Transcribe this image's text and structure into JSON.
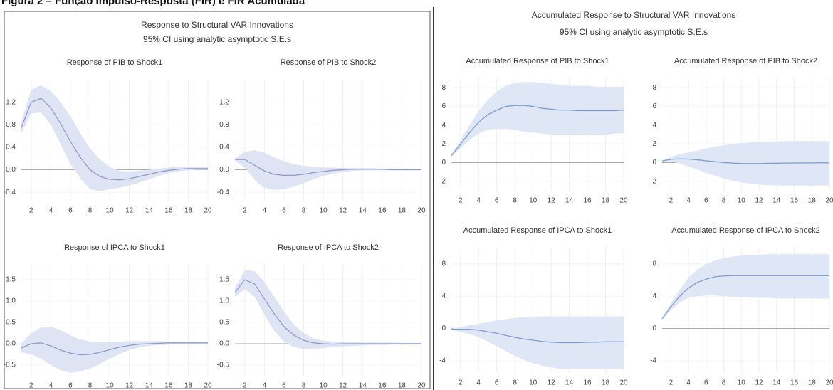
{
  "figure_title": "Figura 2 – Função Impulso-Resposta (FIR) e FIR Acumulada",
  "panels": [
    {
      "title": "Response to Structural VAR Innovations",
      "subtitle": "95% CI using analytic asymptotic S.E.s"
    },
    {
      "title": "Accumulated Response to Structural VAR Innovations",
      "subtitle": "95% CI using analytic asymptotic S.E.s"
    }
  ],
  "chart_data": [
    {
      "type": "line",
      "title": "Response of PIB to Shock1",
      "color": "#8e9cc8",
      "band_color": "#dfe4f5",
      "x": [
        1,
        2,
        3,
        4,
        5,
        6,
        7,
        8,
        9,
        10,
        11,
        12,
        13,
        14,
        15,
        16,
        17,
        18,
        19,
        20
      ],
      "xlim": [
        1,
        20
      ],
      "xticks": [
        2,
        4,
        6,
        8,
        10,
        12,
        14,
        16,
        18,
        20
      ],
      "ylim": [
        -0.55,
        1.6
      ],
      "yticks": [
        -0.4,
        {
          "value": 0,
          "label": "0.0"
        },
        0.4,
        0.8,
        1.2
      ],
      "grid": true,
      "values": [
        0.75,
        1.2,
        1.27,
        1.1,
        0.82,
        0.5,
        0.22,
        0.0,
        -0.12,
        -0.17,
        -0.18,
        -0.16,
        -0.12,
        -0.08,
        -0.04,
        -0.01,
        0.01,
        0.02,
        0.02,
        0.02
      ],
      "ci_upper": [
        0.85,
        1.42,
        1.5,
        1.4,
        1.2,
        0.95,
        0.65,
        0.38,
        0.18,
        0.05,
        -0.02,
        -0.03,
        -0.02,
        0,
        0.02,
        0.04,
        0.05,
        0.05,
        0.05,
        0.05
      ],
      "ci_lower": [
        0.65,
        1.0,
        1.02,
        0.8,
        0.45,
        0.1,
        -0.15,
        -0.35,
        -0.38,
        -0.35,
        -0.32,
        -0.28,
        -0.23,
        -0.17,
        -0.11,
        -0.06,
        -0.03,
        -0.01,
        0,
        0
      ]
    },
    {
      "type": "line",
      "title": "Response of PIB to Shock2",
      "color": "#8e9cc8",
      "band_color": "#dfe4f5",
      "x": [
        1,
        2,
        3,
        4,
        5,
        6,
        7,
        8,
        9,
        10,
        11,
        12,
        13,
        14,
        15,
        16,
        17,
        18,
        19,
        20
      ],
      "xlim": [
        1,
        20
      ],
      "xticks": [
        2,
        4,
        6,
        8,
        10,
        12,
        14,
        16,
        18,
        20
      ],
      "ylim": [
        -0.55,
        1.6
      ],
      "yticks": [
        -0.4,
        {
          "value": 0,
          "label": "0.0"
        },
        0.4,
        0.8,
        1.2
      ],
      "grid": true,
      "values": [
        0.18,
        0.18,
        0.08,
        -0.02,
        -0.08,
        -0.1,
        -0.1,
        -0.08,
        -0.05,
        -0.03,
        -0.01,
        0,
        0.01,
        0.01,
        0.01,
        0.01,
        0,
        0,
        0,
        0
      ],
      "ci_upper": [
        0.2,
        0.32,
        0.35,
        0.3,
        0.22,
        0.15,
        0.1,
        0.07,
        0.05,
        0.04,
        0.04,
        0.03,
        0.03,
        0.03,
        0.03,
        0.02,
        0.02,
        0.02,
        0.01,
        0.01
      ],
      "ci_lower": [
        0.16,
        0.04,
        -0.18,
        -0.32,
        -0.36,
        -0.35,
        -0.3,
        -0.24,
        -0.17,
        -0.11,
        -0.07,
        -0.04,
        -0.02,
        -0.01,
        -0.01,
        -0.01,
        -0.01,
        -0.01,
        -0.01,
        -0.01
      ]
    },
    {
      "type": "line",
      "title": "Response of IPCA to Shock1",
      "color": "#8e9cc8",
      "band_color": "#dfe4f5",
      "x": [
        1,
        2,
        3,
        4,
        5,
        6,
        7,
        8,
        9,
        10,
        11,
        12,
        13,
        14,
        15,
        16,
        17,
        18,
        19,
        20
      ],
      "xlim": [
        1,
        20
      ],
      "xticks": [
        2,
        4,
        6,
        8,
        10,
        12,
        14,
        16,
        18,
        20
      ],
      "ylim": [
        -0.75,
        1.85
      ],
      "yticks": [
        -0.5,
        {
          "value": 0,
          "label": "0.0"
        },
        0.5,
        {
          "value": 1,
          "label": "1.0"
        },
        1.5
      ],
      "grid": true,
      "values": [
        -0.1,
        0,
        0.02,
        -0.05,
        -0.15,
        -0.22,
        -0.26,
        -0.25,
        -0.2,
        -0.14,
        -0.08,
        -0.04,
        -0.01,
        0,
        0.01,
        0.02,
        0.02,
        0.02,
        0.02,
        0.02
      ],
      "ci_upper": [
        0,
        0.25,
        0.38,
        0.4,
        0.32,
        0.2,
        0.1,
        0.05,
        0.03,
        0.04,
        0.05,
        0.06,
        0.06,
        0.06,
        0.06,
        0.05,
        0.05,
        0.05,
        0.05,
        0.05
      ],
      "ci_lower": [
        -0.2,
        -0.25,
        -0.35,
        -0.5,
        -0.62,
        -0.68,
        -0.65,
        -0.58,
        -0.47,
        -0.35,
        -0.24,
        -0.15,
        -0.09,
        -0.05,
        -0.03,
        -0.02,
        -0.01,
        -0.01,
        -0.01,
        -0.01
      ]
    },
    {
      "type": "line",
      "title": "Response of IPCA to Shock2",
      "color": "#8e9cc8",
      "band_color": "#dfe4f5",
      "x": [
        1,
        2,
        3,
        4,
        5,
        6,
        7,
        8,
        9,
        10,
        11,
        12,
        13,
        14,
        15,
        16,
        17,
        18,
        19,
        20
      ],
      "xlim": [
        1,
        20
      ],
      "xticks": [
        2,
        4,
        6,
        8,
        10,
        12,
        14,
        16,
        18,
        20
      ],
      "ylim": [
        -0.75,
        1.85
      ],
      "yticks": [
        -0.5,
        {
          "value": 0,
          "label": "0.0"
        },
        0.5,
        {
          "value": 1,
          "label": "1.0"
        },
        1.5
      ],
      "grid": true,
      "values": [
        1.2,
        1.5,
        1.4,
        1.05,
        0.7,
        0.4,
        0.2,
        0.08,
        0.02,
        0,
        -0.01,
        0,
        0,
        0,
        0,
        0,
        0,
        0,
        0,
        0
      ],
      "ci_upper": [
        1.3,
        1.72,
        1.7,
        1.45,
        1.1,
        0.75,
        0.45,
        0.25,
        0.12,
        0.07,
        0.05,
        0.04,
        0.04,
        0.03,
        0.03,
        0.03,
        0.03,
        0.02,
        0.02,
        0.02
      ],
      "ci_lower": [
        1.1,
        1.28,
        1.1,
        0.68,
        0.3,
        0.05,
        -0.08,
        -0.12,
        -0.12,
        -0.1,
        -0.08,
        -0.06,
        -0.05,
        -0.04,
        -0.03,
        -0.03,
        -0.02,
        -0.02,
        -0.02,
        -0.02
      ]
    },
    {
      "type": "line",
      "title": "Accumulated Response of PIB to Shock1",
      "color": "#7f9ccf",
      "band_color": "#dfe6f5",
      "x": [
        1,
        2,
        3,
        4,
        5,
        6,
        7,
        8,
        9,
        10,
        11,
        12,
        13,
        14,
        15,
        16,
        17,
        18,
        19,
        20
      ],
      "xlim": [
        1,
        20
      ],
      "xticks": [
        2,
        4,
        6,
        8,
        10,
        12,
        14,
        16,
        18,
        20
      ],
      "ylim": [
        -3,
        9
      ],
      "yticks": [
        -2,
        0,
        2,
        4,
        6,
        8
      ],
      "grid": true,
      "values": [
        0.75,
        1.95,
        3.2,
        4.3,
        5.1,
        5.6,
        6.0,
        6.1,
        6.1,
        6.0,
        5.8,
        5.7,
        5.6,
        5.6,
        5.55,
        5.55,
        5.55,
        5.55,
        5.55,
        5.6
      ],
      "ci_upper": [
        0.85,
        2.4,
        4.0,
        5.5,
        6.7,
        7.6,
        8.2,
        8.5,
        8.6,
        8.6,
        8.5,
        8.4,
        8.3,
        8.2,
        8.2,
        8.2,
        8.1,
        8.1,
        8.1,
        8.1
      ],
      "ci_lower": [
        0.65,
        1.5,
        2.4,
        3.1,
        3.5,
        3.6,
        3.6,
        3.5,
        3.3,
        3.2,
        3.1,
        3.0,
        3.0,
        3.0,
        3.0,
        3.0,
        3.0,
        3.0,
        3.1,
        3.1
      ]
    },
    {
      "type": "line",
      "title": "Accumulated Response of PIB to Shock2",
      "color": "#7f9ccf",
      "band_color": "#dfe6f5",
      "x": [
        1,
        2,
        3,
        4,
        5,
        6,
        7,
        8,
        9,
        10,
        11,
        12,
        13,
        14,
        15,
        16,
        17,
        18,
        19,
        20
      ],
      "xlim": [
        1,
        20
      ],
      "xticks": [
        2,
        4,
        6,
        8,
        10,
        12,
        14,
        16,
        18,
        20
      ],
      "ylim": [
        -3,
        9
      ],
      "yticks": [
        -2,
        0,
        2,
        4,
        6,
        8
      ],
      "grid": true,
      "values": [
        0.18,
        0.35,
        0.4,
        0.38,
        0.3,
        0.2,
        0.1,
        0,
        -0.05,
        -0.1,
        -0.1,
        -0.1,
        -0.08,
        -0.06,
        -0.05,
        -0.04,
        -0.03,
        -0.03,
        -0.02,
        -0.02
      ],
      "ci_upper": [
        0.2,
        0.6,
        0.9,
        1.1,
        1.3,
        1.5,
        1.7,
        1.85,
        2.0,
        2.1,
        2.15,
        2.2,
        2.25,
        2.25,
        2.3,
        2.3,
        2.3,
        2.3,
        2.3,
        2.3
      ],
      "ci_lower": [
        0.16,
        0.1,
        -0.1,
        -0.4,
        -0.75,
        -1.1,
        -1.4,
        -1.7,
        -1.95,
        -2.1,
        -2.25,
        -2.35,
        -2.4,
        -2.45,
        -2.45,
        -2.45,
        -2.45,
        -2.45,
        -2.45,
        -2.45
      ]
    },
    {
      "type": "line",
      "title": "Accumulated Response of IPCA to Shock1",
      "color": "#7f9ccf",
      "band_color": "#dfe6f5",
      "x": [
        1,
        2,
        3,
        4,
        5,
        6,
        7,
        8,
        9,
        10,
        11,
        12,
        13,
        14,
        15,
        16,
        17,
        18,
        19,
        20
      ],
      "xlim": [
        1,
        20
      ],
      "xticks": [
        2,
        4,
        6,
        8,
        10,
        12,
        14,
        16,
        18,
        20
      ],
      "ylim": [
        -5.5,
        10
      ],
      "yticks": [
        -4,
        0,
        4,
        8
      ],
      "grid": true,
      "values": [
        -0.1,
        -0.1,
        -0.1,
        -0.2,
        -0.4,
        -0.6,
        -0.85,
        -1.1,
        -1.3,
        -1.45,
        -1.6,
        -1.7,
        -1.75,
        -1.75,
        -1.75,
        -1.7,
        -1.7,
        -1.65,
        -1.65,
        -1.65
      ],
      "ci_upper": [
        0,
        0.15,
        0.4,
        0.6,
        0.8,
        1.0,
        1.15,
        1.3,
        1.4,
        1.45,
        1.5,
        1.5,
        1.5,
        1.5,
        1.5,
        1.5,
        1.5,
        1.5,
        1.5,
        1.5
      ],
      "ci_lower": [
        -0.2,
        -0.4,
        -0.7,
        -1.1,
        -1.6,
        -2.2,
        -2.8,
        -3.4,
        -3.9,
        -4.3,
        -4.6,
        -4.8,
        -5.0,
        -5.0,
        -5.0,
        -5.0,
        -5.0,
        -5.0,
        -5.0,
        -5.0
      ]
    },
    {
      "type": "line",
      "title": "Accumulated Response of IPCA to Shock2",
      "color": "#7f9ccf",
      "band_color": "#dfe6f5",
      "x": [
        1,
        2,
        3,
        4,
        5,
        6,
        7,
        8,
        9,
        10,
        11,
        12,
        13,
        14,
        15,
        16,
        17,
        18,
        19,
        20
      ],
      "xlim": [
        1,
        20
      ],
      "xticks": [
        2,
        4,
        6,
        8,
        10,
        12,
        14,
        16,
        18,
        20
      ],
      "ylim": [
        -5.5,
        10
      ],
      "yticks": [
        -4,
        0,
        4,
        8
      ],
      "grid": true,
      "values": [
        1.2,
        2.7,
        4.0,
        5.0,
        5.7,
        6.1,
        6.4,
        6.5,
        6.55,
        6.55,
        6.55,
        6.55,
        6.55,
        6.55,
        6.55,
        6.55,
        6.55,
        6.55,
        6.55,
        6.55
      ],
      "ci_upper": [
        1.3,
        3.1,
        4.8,
        6.3,
        7.3,
        8.0,
        8.4,
        8.7,
        8.9,
        9.0,
        9.1,
        9.1,
        9.2,
        9.2,
        9.2,
        9.2,
        9.2,
        9.2,
        9.2,
        9.2
      ],
      "ci_lower": [
        1.1,
        2.3,
        3.2,
        3.8,
        4.0,
        4.1,
        4.1,
        4.0,
        3.9,
        3.9,
        3.8,
        3.8,
        3.8,
        3.7,
        3.7,
        3.7,
        3.7,
        3.7,
        3.7,
        3.7
      ]
    }
  ]
}
